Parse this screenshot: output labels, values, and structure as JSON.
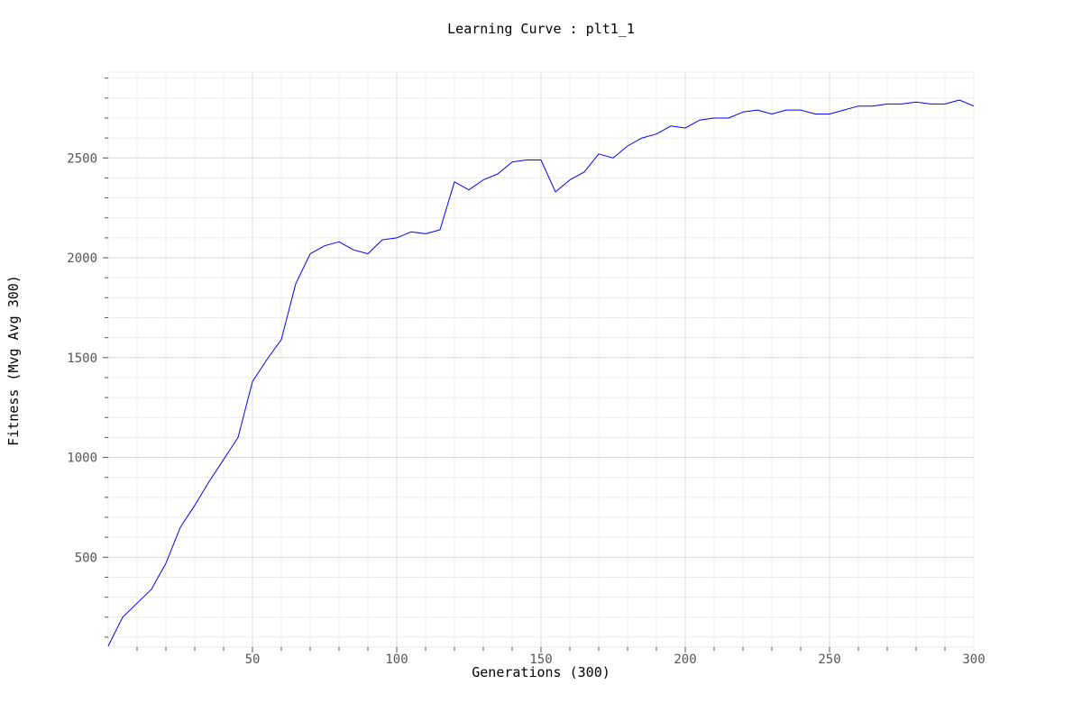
{
  "chart_data": {
    "type": "line",
    "title": "Learning Curve : plt1_1",
    "xlabel": "Generations (300)",
    "ylabel": "Fitness (Mvg Avg 300)",
    "xlim": [
      0,
      300
    ],
    "ylim": [
      50,
      2930
    ],
    "xticks": [
      50,
      100,
      150,
      200,
      250,
      300
    ],
    "yticks": [
      500,
      1000,
      1500,
      2000,
      2500
    ],
    "grid": true,
    "legend": "none",
    "series": [
      {
        "color": "#0000ff",
        "x": [
          0,
          5,
          10,
          15,
          20,
          25,
          30,
          35,
          40,
          45,
          50,
          55,
          60,
          65,
          70,
          75,
          80,
          85,
          90,
          95,
          100,
          105,
          110,
          115,
          120,
          125,
          130,
          135,
          140,
          145,
          150,
          155,
          160,
          165,
          170,
          175,
          180,
          185,
          190,
          195,
          200,
          205,
          210,
          215,
          220,
          225,
          230,
          235,
          240,
          245,
          250,
          255,
          260,
          265,
          270,
          275,
          280,
          285,
          290,
          295,
          300
        ],
        "y": [
          55,
          200,
          270,
          340,
          470,
          650,
          760,
          880,
          990,
          1100,
          1380,
          1490,
          1590,
          1870,
          2020,
          2060,
          2080,
          2040,
          2020,
          2090,
          2100,
          2130,
          2120,
          2140,
          2380,
          2340,
          2390,
          2420,
          2480,
          2490,
          2490,
          2330,
          2390,
          2430,
          2520,
          2500,
          2560,
          2600,
          2620,
          2660,
          2650,
          2690,
          2700,
          2700,
          2730,
          2740,
          2720,
          2740,
          2740,
          2720,
          2720,
          2740,
          2760,
          2760,
          2770,
          2770,
          2780,
          2770,
          2770,
          2790,
          2760
        ]
      }
    ]
  }
}
